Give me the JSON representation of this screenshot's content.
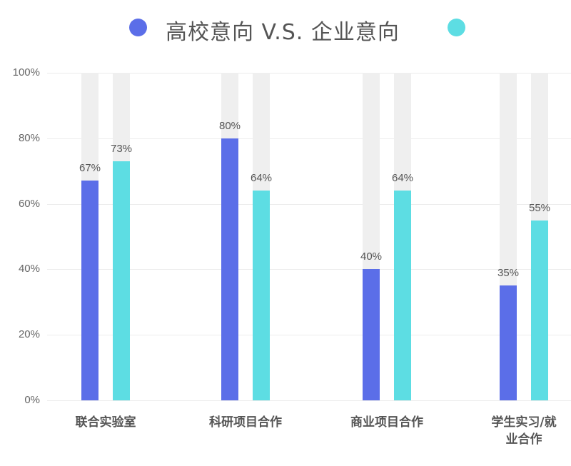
{
  "chart_data": {
    "type": "bar",
    "title": "高校意向 V.S. 企业意向",
    "categories": [
      "联合实验室",
      "科研项目合作",
      "商业项目合作",
      "学生实习/就业合作"
    ],
    "series": [
      {
        "name": "高校意向",
        "color": "#5b6ee8",
        "values": [
          67,
          80,
          40,
          35
        ]
      },
      {
        "name": "企业意向",
        "color": "#5ddde3",
        "values": [
          73,
          64,
          64,
          55
        ]
      }
    ],
    "value_labels": {
      "series0": [
        "67%",
        "80%",
        "40%",
        "35%"
      ],
      "series1": [
        "73%",
        "64%",
        "64%",
        "55%"
      ]
    },
    "yticks": [
      "100%",
      "80%",
      "60%",
      "40%",
      "20%",
      "0%"
    ],
    "ylim": [
      0,
      100
    ],
    "xlabel": "",
    "ylabel": "",
    "grid": true,
    "legend_position": "top",
    "background_track_color": "#efefef"
  }
}
